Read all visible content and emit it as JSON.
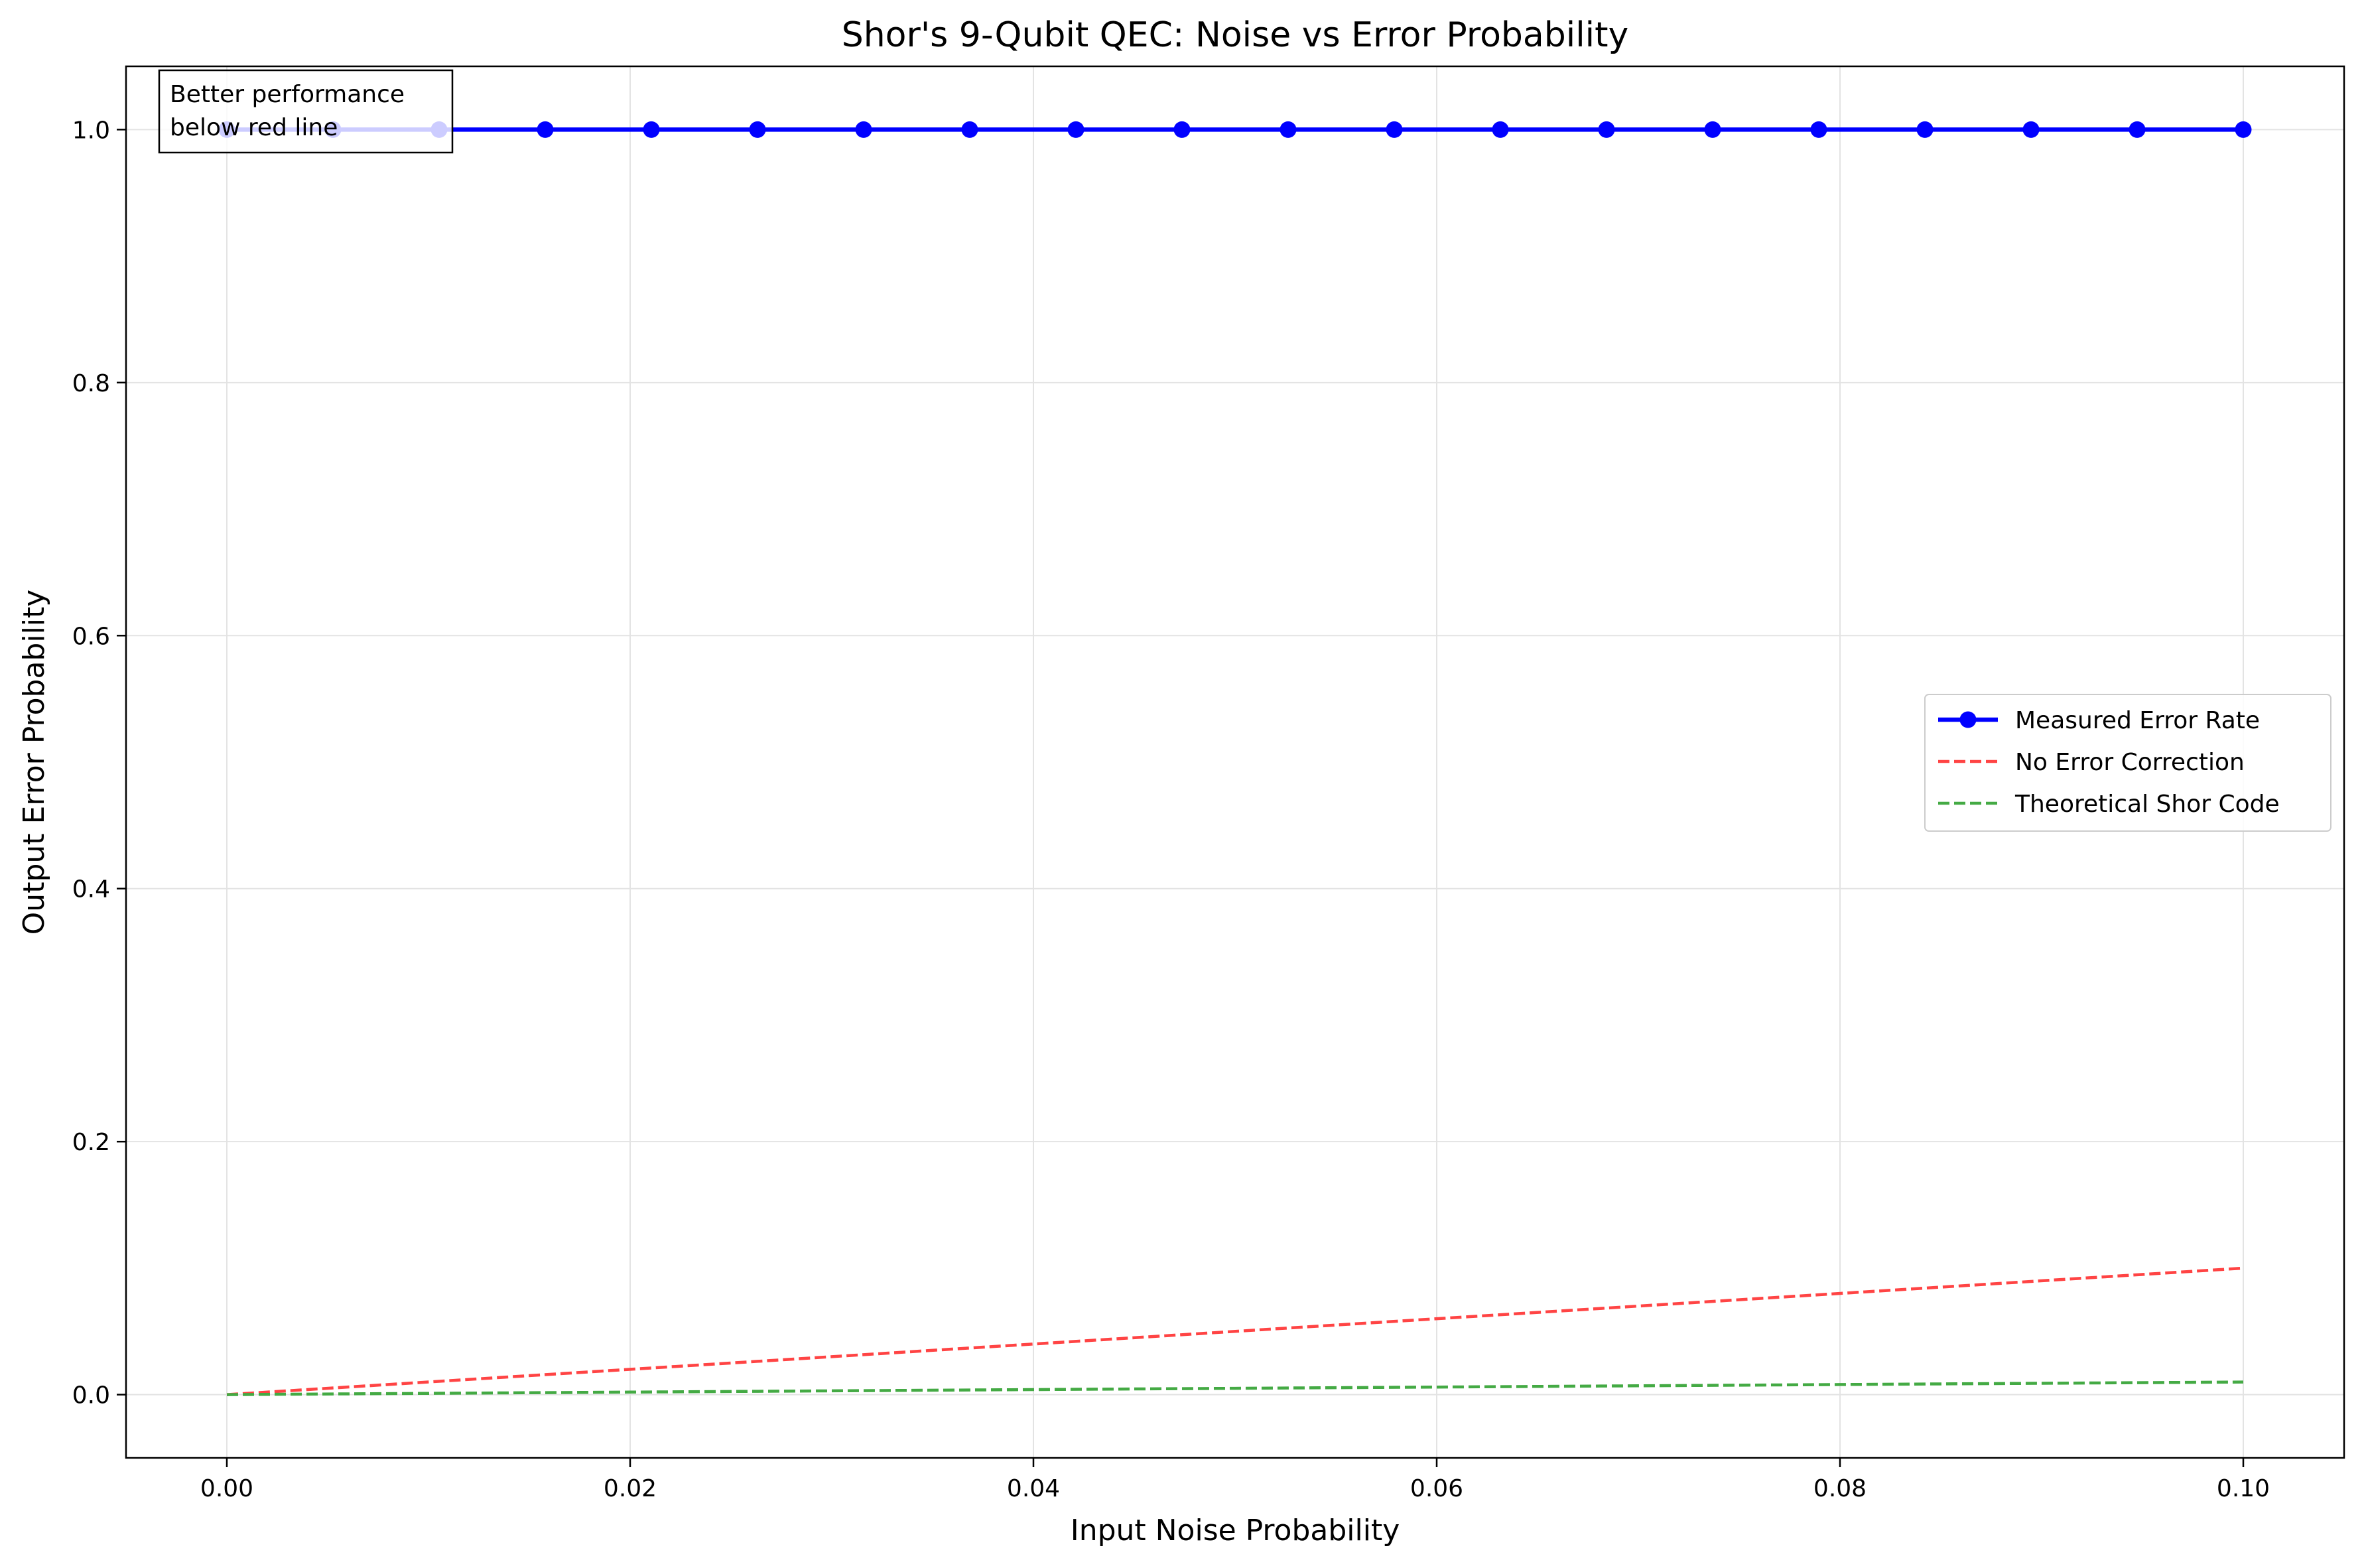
{
  "chart_data": {
    "type": "line",
    "title": "Shor's 9-Qubit QEC: Noise vs Error Probability",
    "xlabel": "Input Noise Probability",
    "ylabel": "Output Error Probability",
    "xlim": [
      -0.005,
      0.105
    ],
    "ylim": [
      -0.05,
      1.05
    ],
    "xticks": [
      0.0,
      0.02,
      0.04,
      0.06,
      0.08,
      0.1
    ],
    "xtick_labels": [
      "0.00",
      "0.02",
      "0.04",
      "0.06",
      "0.08",
      "0.10"
    ],
    "yticks": [
      0.0,
      0.2,
      0.4,
      0.6,
      0.8,
      1.0
    ],
    "ytick_labels": [
      "0.0",
      "0.2",
      "0.4",
      "0.6",
      "0.8",
      "1.0"
    ],
    "grid": true,
    "legend_position": "center-right",
    "series": [
      {
        "name": "Measured Error Rate",
        "color": "#0000ff",
        "style": "solid-with-markers",
        "x": [
          0.0,
          0.005263,
          0.010526,
          0.015789,
          0.021053,
          0.026316,
          0.031579,
          0.036842,
          0.042105,
          0.047368,
          0.052632,
          0.057895,
          0.063158,
          0.068421,
          0.073684,
          0.078947,
          0.084211,
          0.089474,
          0.094737,
          0.1
        ],
        "y": [
          1.0,
          1.0,
          1.0,
          1.0,
          1.0,
          1.0,
          1.0,
          1.0,
          1.0,
          1.0,
          1.0,
          1.0,
          1.0,
          1.0,
          1.0,
          1.0,
          1.0,
          1.0,
          1.0,
          1.0
        ]
      },
      {
        "name": "No Error Correction",
        "color": "#ff4444",
        "style": "dashed",
        "x": [
          0.0,
          0.1
        ],
        "y": [
          0.0,
          0.1
        ]
      },
      {
        "name": "Theoretical Shor Code",
        "color": "#44aa44",
        "style": "dashed",
        "x": [
          0.0,
          0.01,
          0.02,
          0.03,
          0.04,
          0.05,
          0.06,
          0.07,
          0.08,
          0.09,
          0.1
        ],
        "y": [
          0.0,
          0.001,
          0.002,
          0.003,
          0.004,
          0.005,
          0.006,
          0.007,
          0.008,
          0.009,
          0.01
        ]
      }
    ],
    "annotation": {
      "lines": [
        "Better performance",
        "below red line"
      ],
      "position": "top-left"
    }
  }
}
